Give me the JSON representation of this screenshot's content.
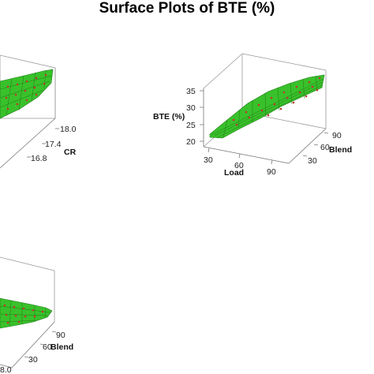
{
  "title": "Surface Plots of BTE (%)",
  "colors": {
    "surface": "#39c12b",
    "surface_mesh": "#1f7a16",
    "points": "#c0392b",
    "axes": "#666666"
  },
  "chart_data": [
    {
      "type": "surface",
      "position": "top-left (cropped)",
      "zlabel": "",
      "axes": [
        {
          "label": "CR",
          "ticks": [
            "16.8",
            "17.4",
            "18.0"
          ]
        }
      ]
    },
    {
      "type": "surface",
      "position": "top-right",
      "zlabel": "BTE (%)",
      "zticks": [
        "20",
        "25",
        "30",
        "35"
      ],
      "axes": [
        {
          "label": "Load",
          "ticks": [
            "30",
            "60",
            "90"
          ]
        },
        {
          "label": "Blend",
          "ticks": [
            "30",
            "60",
            "90"
          ]
        }
      ],
      "trend": "BTE rises from about 20 % at low Load to about 33 % at high Load; little change with Blend"
    },
    {
      "type": "surface",
      "position": "bottom-left (cropped)",
      "zlabel": "",
      "axes": [
        {
          "label": "Blend",
          "ticks": [
            "30",
            "60",
            "90"
          ]
        },
        {
          "label": "",
          "ticks": [
            "8.0"
          ]
        }
      ]
    }
  ]
}
